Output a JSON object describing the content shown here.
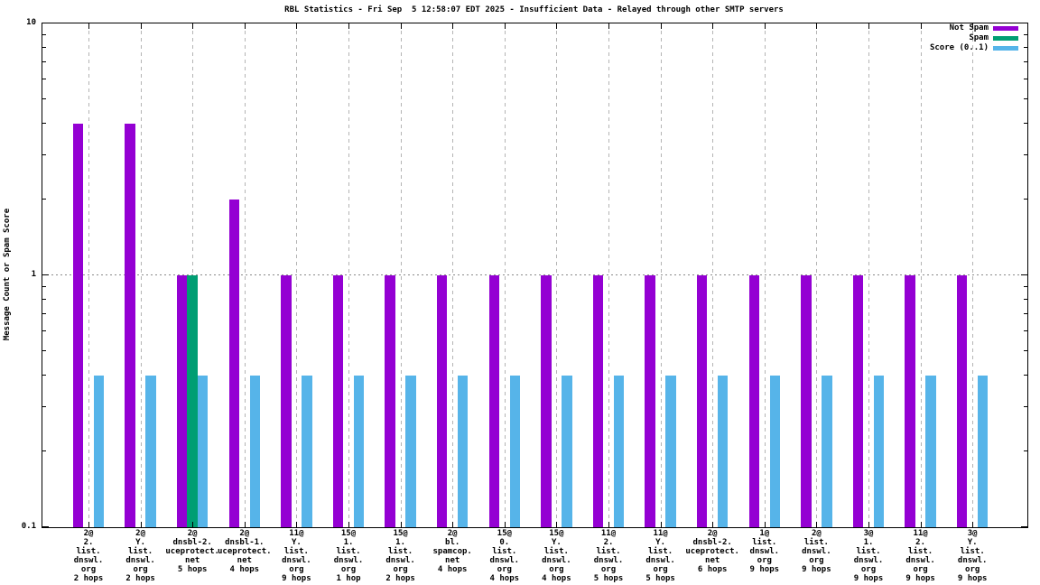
{
  "chart_data": {
    "type": "bar",
    "title": "RBL Statistics - Fri Sep  5 12:58:07 EDT 2025 - Insufficient Data - Relayed through other SMTP servers",
    "ylabel": "Message Count or Spam Score",
    "xlabel": "",
    "y_scale": "log",
    "ylim": [
      0.1,
      10
    ],
    "y_ticks": [
      {
        "value": 10,
        "label": "10"
      },
      {
        "value": 1,
        "label": "1"
      },
      {
        "value": 0.1,
        "label": "0.1"
      }
    ],
    "grid": {
      "vertical_dashed_at_each_group": true,
      "horizontal_dotted_at": 1
    },
    "legend_position": "top-right-inside",
    "series": [
      {
        "name": "Not Spam",
        "key": "not_spam",
        "color": "#9400d3"
      },
      {
        "name": "Spam",
        "key": "spam",
        "color": "#009e73"
      },
      {
        "name": "Score (0..1)",
        "key": "score",
        "color": "#56b4e9"
      }
    ],
    "groups": [
      {
        "label_lines": [
          "2@",
          "2.",
          "list.",
          "dnswl.",
          "org",
          "2 hops"
        ],
        "not_spam": 4,
        "spam": 0,
        "score": 0.4
      },
      {
        "label_lines": [
          "2@",
          "Y.",
          "list.",
          "dnswl.",
          "org",
          "2 hops"
        ],
        "not_spam": 4,
        "spam": 0,
        "score": 0.4
      },
      {
        "label_lines": [
          "2@",
          "dnsbl-2.",
          "uceprotect.",
          "net",
          "5 hops"
        ],
        "not_spam": 1,
        "spam": 1,
        "score": 0.4
      },
      {
        "label_lines": [
          "2@",
          "dnsbl-1.",
          "uceprotect.",
          "net",
          "4 hops"
        ],
        "not_spam": 2,
        "spam": 0,
        "score": 0.4
      },
      {
        "label_lines": [
          "11@",
          "Y.",
          "list.",
          "dnswl.",
          "org",
          "9 hops"
        ],
        "not_spam": 1,
        "spam": 0,
        "score": 0.4
      },
      {
        "label_lines": [
          "15@",
          "1.",
          "list.",
          "dnswl.",
          "org",
          "1 hop"
        ],
        "not_spam": 1,
        "spam": 0,
        "score": 0.4
      },
      {
        "label_lines": [
          "15@",
          "1.",
          "list.",
          "dnswl.",
          "org",
          "2 hops"
        ],
        "not_spam": 1,
        "spam": 0,
        "score": 0.4
      },
      {
        "label_lines": [
          "2@",
          "bl.",
          "spamcop.",
          "net",
          "4 hops"
        ],
        "not_spam": 1,
        "spam": 0,
        "score": 0.4
      },
      {
        "label_lines": [
          "15@",
          "0.",
          "list.",
          "dnswl.",
          "org",
          "4 hops"
        ],
        "not_spam": 1,
        "spam": 0,
        "score": 0.4
      },
      {
        "label_lines": [
          "15@",
          "Y.",
          "list.",
          "dnswl.",
          "org",
          "4 hops"
        ],
        "not_spam": 1,
        "spam": 0,
        "score": 0.4
      },
      {
        "label_lines": [
          "11@",
          "2.",
          "list.",
          "dnswl.",
          "org",
          "5 hops"
        ],
        "not_spam": 1,
        "spam": 0,
        "score": 0.4
      },
      {
        "label_lines": [
          "11@",
          "Y.",
          "list.",
          "dnswl.",
          "org",
          "5 hops"
        ],
        "not_spam": 1,
        "spam": 0,
        "score": 0.4
      },
      {
        "label_lines": [
          "2@",
          "dnsbl-2.",
          "uceprotect.",
          "net",
          "6 hops"
        ],
        "not_spam": 1,
        "spam": 0,
        "score": 0.4
      },
      {
        "label_lines": [
          "1@",
          "list.",
          "dnswl.",
          "org",
          "9 hops"
        ],
        "not_spam": 1,
        "spam": 0,
        "score": 0.4
      },
      {
        "label_lines": [
          "2@",
          "list.",
          "dnswl.",
          "org",
          "9 hops"
        ],
        "not_spam": 1,
        "spam": 0,
        "score": 0.4
      },
      {
        "label_lines": [
          "3@",
          "1.",
          "list.",
          "dnswl.",
          "org",
          "9 hops"
        ],
        "not_spam": 1,
        "spam": 0,
        "score": 0.4
      },
      {
        "label_lines": [
          "11@",
          "2.",
          "list.",
          "dnswl.",
          "org",
          "9 hops"
        ],
        "not_spam": 1,
        "spam": 0,
        "score": 0.4
      },
      {
        "label_lines": [
          "3@",
          "Y.",
          "list.",
          "dnswl.",
          "org",
          "9 hops"
        ],
        "not_spam": 1,
        "spam": 0,
        "score": 0.4
      }
    ],
    "axis_color": "#000000",
    "vgrid_color": "#b4b4b4",
    "hgrid_color": "#8a8a8a",
    "background_color": "#ffffff"
  }
}
